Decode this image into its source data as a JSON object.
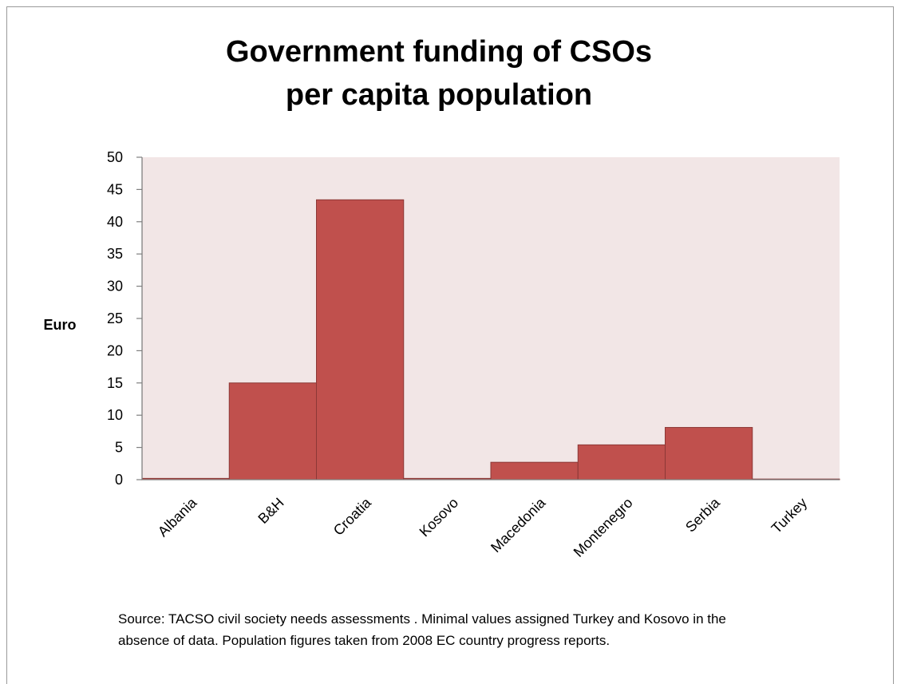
{
  "chart_data": {
    "type": "bar",
    "title_lines": [
      "Government funding of CSOs",
      "per capita population"
    ],
    "ylabel": "Euro",
    "xlabel": "",
    "categories": [
      "Albania",
      "B&H",
      "Croatia",
      "Kosovo",
      "Macedonia",
      "Montenegro",
      "Serbia",
      "Turkey"
    ],
    "values": [
      0.2,
      15,
      43.4,
      0.2,
      2.7,
      5.4,
      8.1,
      0.1
    ],
    "ylim": [
      0,
      50
    ],
    "yticks": [
      "0",
      "5",
      "10",
      "15",
      "20",
      "25",
      "30",
      "35",
      "40",
      "45",
      "50"
    ],
    "grid": false,
    "legend": "none",
    "colors": {
      "bar_fill": "#c0504d",
      "bar_stroke": "#8c3836",
      "plot_background": "#f2e6e6",
      "axis": "#7f7f7f"
    }
  },
  "footnote_lines": [
    "Source: TACSO civil society needs assessments .   Minimal values assigned Turkey and Kosovo in the",
    "absence of data. Population figures taken from 2008 EC country progress reports."
  ]
}
